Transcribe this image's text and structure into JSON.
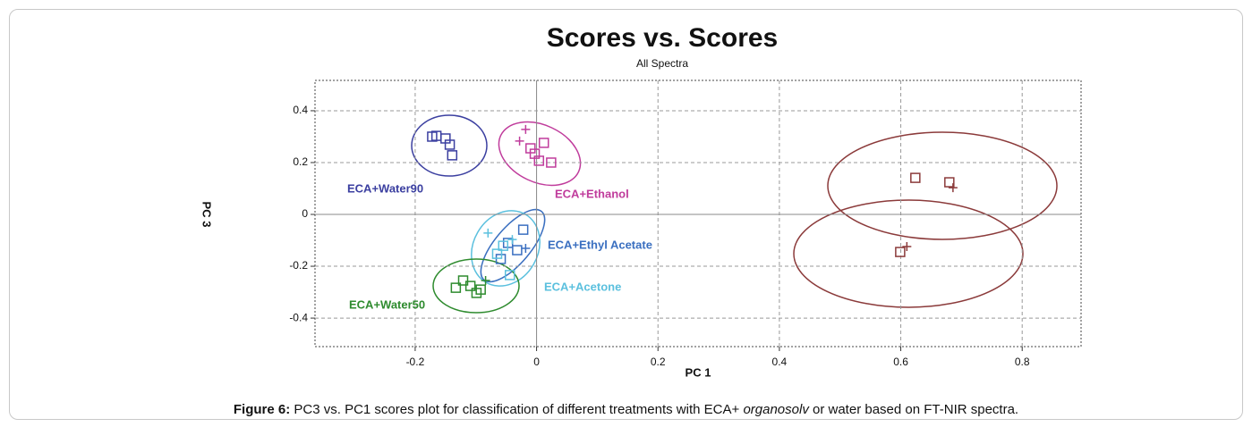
{
  "chart_data": {
    "type": "scatter",
    "title": "Scores vs. Scores",
    "subtitle": "All Spectra",
    "x_label": "PC 1",
    "y_label": "PC 3",
    "xlim": [
      -0.365,
      0.897
    ],
    "ylim": [
      -0.51,
      0.517
    ],
    "xticks": [
      -0.2,
      0,
      0.2,
      0.4,
      0.6,
      0.8
    ],
    "yticks": [
      0.4,
      0.2,
      0,
      -0.2,
      -0.4
    ],
    "grid": true,
    "series": [
      {
        "name": "ECA+Water90",
        "color": "#3b3fa0",
        "x": [
          -0.165,
          -0.15,
          -0.143,
          -0.139,
          -0.172
        ],
        "values": [
          0.303,
          0.293,
          0.269,
          0.228,
          0.3
        ],
        "markers": [
          "square",
          "square",
          "square",
          "square",
          "square"
        ]
      },
      {
        "name": "ECA+Ethanol",
        "color": "#c03c9c",
        "x": [
          0.012,
          -0.01,
          0.004,
          0.024,
          -0.003,
          -0.018,
          -0.028
        ],
        "values": [
          0.276,
          0.255,
          0.207,
          0.2,
          0.234,
          0.328,
          0.283
        ],
        "markers": [
          "square",
          "square",
          "square",
          "square",
          "square",
          "plus",
          "plus"
        ]
      },
      {
        "name": "ECA+Ethyl Acetate",
        "color": "#3a6fc0",
        "x": [
          -0.022,
          -0.059,
          -0.032,
          -0.047,
          -0.018
        ],
        "values": [
          -0.059,
          -0.172,
          -0.138,
          -0.11,
          -0.131
        ],
        "markers": [
          "square",
          "square",
          "square",
          "square",
          "plus"
        ]
      },
      {
        "name": "ECA+Acetone",
        "color": "#5bc0de",
        "x": [
          -0.065,
          -0.044,
          -0.055,
          -0.08,
          -0.04
        ],
        "values": [
          -0.152,
          -0.234,
          -0.121,
          -0.072,
          -0.097
        ],
        "markers": [
          "square",
          "square",
          "square",
          "plus",
          "plus"
        ]
      },
      {
        "name": "ECA+Water50",
        "color": "#2e8b2e",
        "x": [
          -0.133,
          -0.109,
          -0.092,
          -0.121,
          -0.099,
          -0.084
        ],
        "values": [
          -0.283,
          -0.276,
          -0.29,
          -0.255,
          -0.303,
          -0.255
        ],
        "markers": [
          "square",
          "square",
          "square",
          "square",
          "square",
          "plus"
        ]
      },
      {
        "color": "#8b3a3a",
        "x": [
          0.624,
          0.68,
          0.599,
          0.686,
          0.61
        ],
        "values": [
          0.141,
          0.124,
          -0.145,
          0.103,
          -0.124
        ],
        "markers": [
          "square",
          "square",
          "square",
          "plus",
          "plus"
        ]
      }
    ]
  },
  "caption": [
    "Figure 6:",
    "PC3 vs. PC1 scores plot for classification of different treatments with ECA+",
    "organosolv",
    "or water based on FT-NIR spectra."
  ]
}
